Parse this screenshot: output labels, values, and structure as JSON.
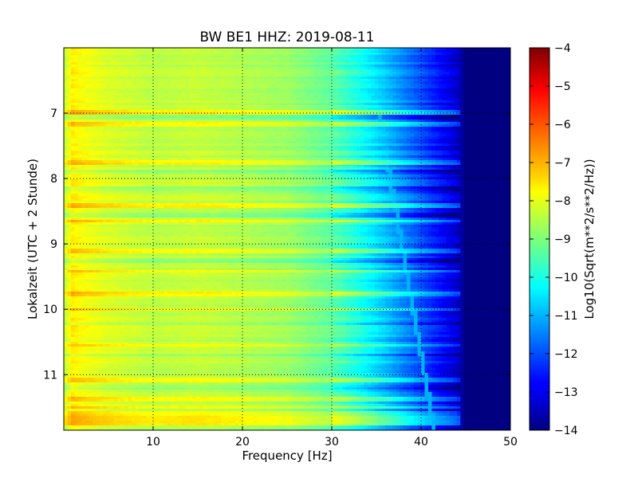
{
  "chart_data": {
    "type": "heatmap",
    "title": "BW BE1 HHZ: 2019-08-11",
    "xlabel": "Frequency [Hz]",
    "ylabel": "Lokalzeit (UTC + 2 Stunde)",
    "colorbar_label": "Log10(Sqrt(m**2/s**2/Hz))",
    "xlim": [
      0,
      50
    ],
    "ylim": [
      11.85,
      6.0
    ],
    "y_inverted": true,
    "grid": true,
    "colormap": "jet",
    "color_range": [
      -14,
      -4
    ],
    "x_ticks": [
      10,
      20,
      30,
      40,
      50
    ],
    "y_ticks": [
      7,
      8,
      9,
      10,
      11
    ],
    "colorbar_ticks": [
      -4,
      -5,
      -6,
      -7,
      -8,
      -9,
      -10,
      -11,
      -12,
      -13,
      -14
    ],
    "levels_by_frequency": {
      "frequency_hz": [
        0,
        1,
        2,
        5,
        10,
        15,
        20,
        25,
        30,
        33,
        36,
        38,
        40,
        42,
        44,
        45,
        50
      ],
      "log10_amplitude": [
        -8.4,
        -7.6,
        -7.8,
        -8.1,
        -8.4,
        -8.3,
        -8.5,
        -8.7,
        -9.3,
        -10.0,
        -10.8,
        -11.4,
        -12.0,
        -12.6,
        -13.2,
        -14.0,
        -14.0
      ]
    },
    "features": {
      "narrowband_line_hz": {
        "start": 34.0,
        "end": 41.5,
        "log10_amplitude": -11.0
      },
      "high_noise_rows_hour": [
        6.98,
        7.16,
        7.75,
        8.4,
        8.65,
        9.1,
        9.42,
        9.78,
        10.0,
        10.55,
        11.08,
        11.38,
        11.5,
        11.6,
        11.68,
        11.75
      ],
      "low_noise_rows_hour": [
        7.05,
        7.9,
        8.15,
        8.55,
        9.25,
        10.22,
        10.7,
        11.2
      ]
    }
  }
}
